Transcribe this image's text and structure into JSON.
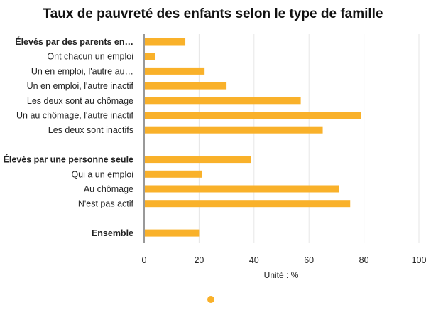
{
  "chart_data": {
    "type": "bar",
    "orientation": "horizontal",
    "title": "Taux de pauvreté des enfants selon le type de famille",
    "xlabel": "Unité : %",
    "xlim": [
      0,
      100
    ],
    "xticks": [
      0,
      20,
      40,
      60,
      80,
      100
    ],
    "grid": true,
    "bar_color": "#f9b12a",
    "categories": [
      "Élevés par des parents en…",
      "Ont chacun un emploi",
      "Un en emploi, l'autre au…",
      "Un en emploi, l'autre inactif",
      "Les deux sont au chômage",
      "Un au chômage, l'autre inactif",
      "Les deux sont inactifs",
      "",
      "Élevés par une personne seule",
      "Qui a un emploi",
      "Au chômage",
      "N'est pas actif",
      "",
      "Ensemble"
    ],
    "bold_categories": [
      "Élevés par des parents en…",
      "Élevés par une personne seule",
      "Ensemble"
    ],
    "values": [
      15,
      4,
      22,
      30,
      57,
      79,
      65,
      null,
      39,
      21,
      71,
      75,
      null,
      20
    ],
    "legend": {
      "position": "bottom-center",
      "marker_color": "#f9b12a"
    }
  }
}
